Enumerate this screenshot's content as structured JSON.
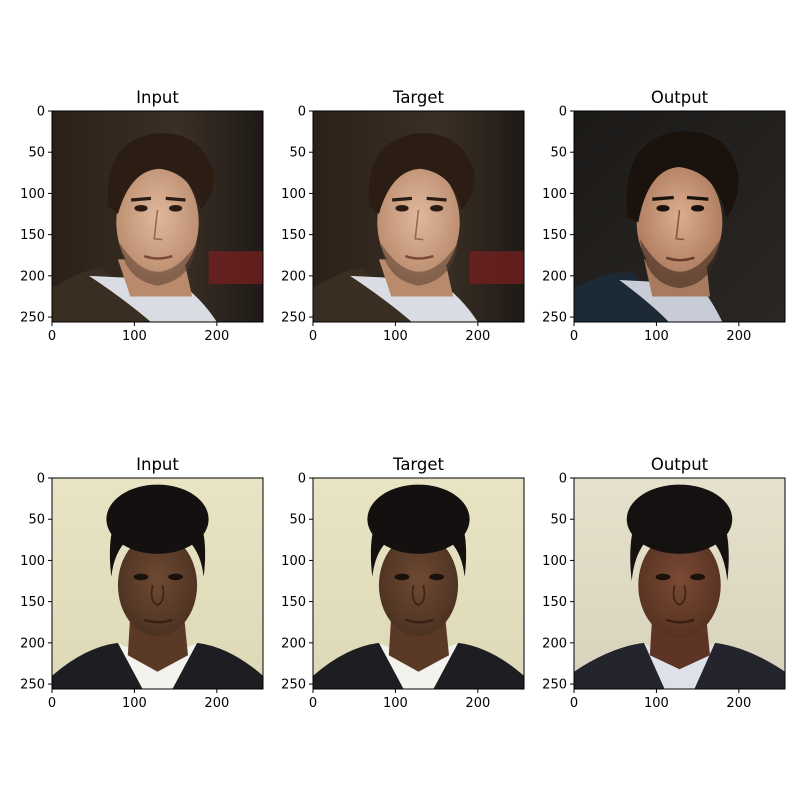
{
  "figure": {
    "panels": [
      {
        "title": "Input",
        "row": 0,
        "col": 0,
        "subject": "man-brown-hair"
      },
      {
        "title": "Target",
        "row": 0,
        "col": 1,
        "subject": "man-brown-hair"
      },
      {
        "title": "Output",
        "row": 0,
        "col": 2,
        "subject": "man-dark-hair"
      },
      {
        "title": "Input",
        "row": 1,
        "col": 0,
        "subject": "woman-short-hair"
      },
      {
        "title": "Target",
        "row": 1,
        "col": 1,
        "subject": "woman-short-hair"
      },
      {
        "title": "Output",
        "row": 1,
        "col": 2,
        "subject": "woman-short-hair-smooth"
      }
    ],
    "x_ticks": [
      "0",
      "100",
      "200"
    ],
    "y_ticks": [
      "0",
      "50",
      "100",
      "150",
      "200",
      "250"
    ],
    "image_extent": [
      0,
      256
    ]
  }
}
